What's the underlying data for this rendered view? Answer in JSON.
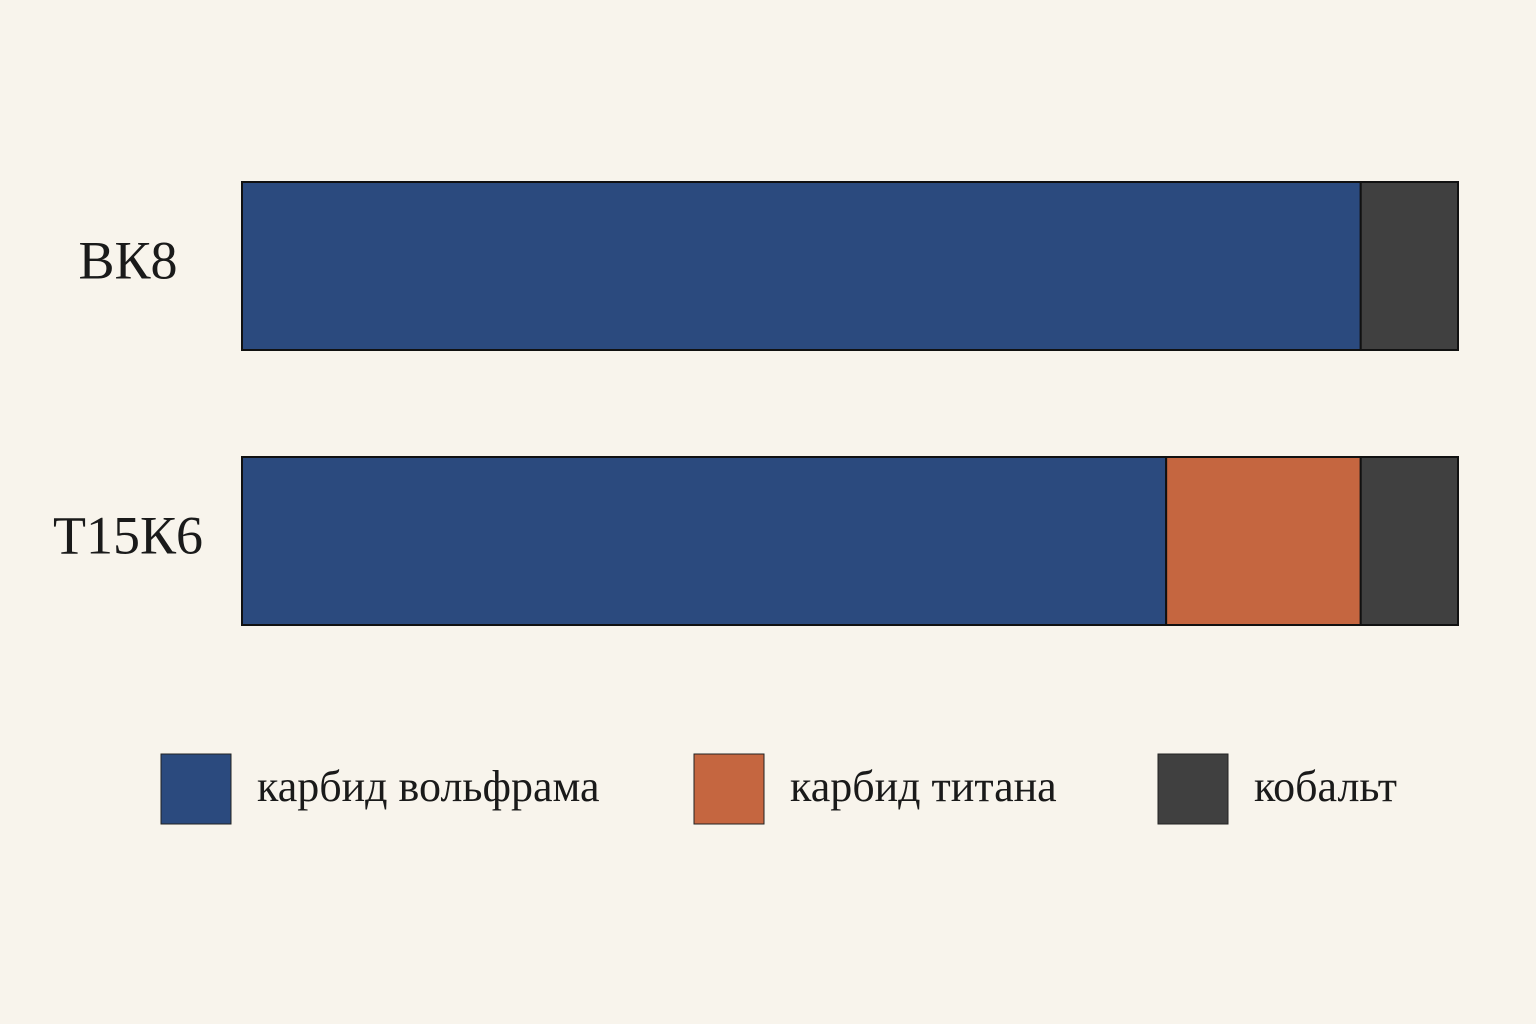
{
  "chart_data": {
    "type": "bar",
    "orientation": "horizontal",
    "stacked": true,
    "categories": [
      "ВК8",
      "Т15К6"
    ],
    "series": [
      {
        "name": "карбид вольфрама",
        "color": "#2b4a7e",
        "values": [
          92,
          76
        ]
      },
      {
        "name": "карбид титана",
        "color": "#c56640",
        "values": [
          null,
          16
        ]
      },
      {
        "name": "кобальт",
        "color": "#404040",
        "values": [
          8,
          8
        ]
      }
    ],
    "xlim": [
      0,
      100
    ],
    "legend": "bottom"
  }
}
